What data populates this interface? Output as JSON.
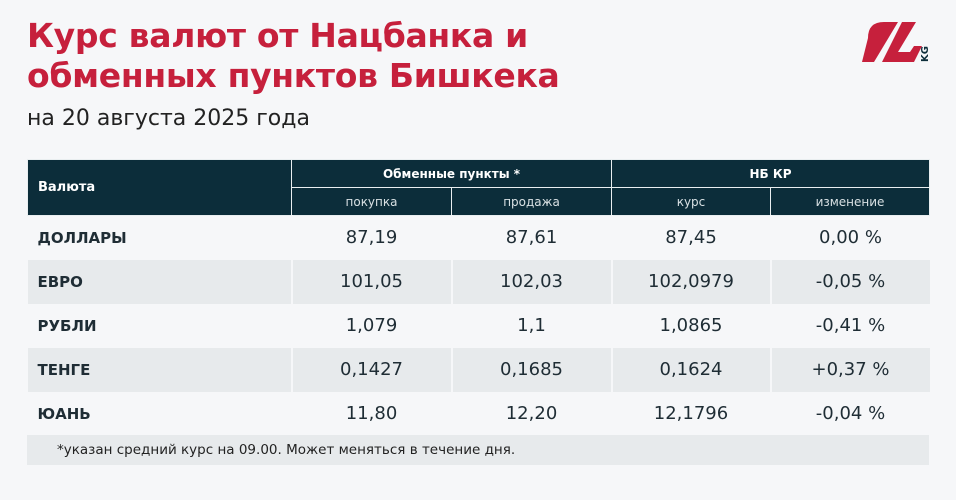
{
  "title_line1": "Курс валют от Нацбанка и",
  "title_line2": "обменных пунктов Бишкека",
  "subtitle": "на 20 августа 2025 года",
  "logo": {
    "text": "24",
    "suffix": "KG",
    "colors": {
      "red": "#c6203c",
      "blue": "#0c2d3a"
    }
  },
  "table": {
    "currency_header": "Валюта",
    "group_exchange": "Обменные пункты *",
    "group_nb": "НБ КР",
    "sub_headers": [
      "покупка",
      "продажа",
      "курс",
      "изменение"
    ],
    "rows": [
      {
        "name": "ДОЛЛАРЫ",
        "buy": "87,19",
        "sell": "87,61",
        "rate": "87,45",
        "change": "0,00 %"
      },
      {
        "name": "ЕВРО",
        "buy": "101,05",
        "sell": "102,03",
        "rate": "102,0979",
        "change": "-0,05 %"
      },
      {
        "name": "РУБЛИ",
        "buy": "1,079",
        "sell": "1,1",
        "rate": "1,0865",
        "change": "-0,41 %"
      },
      {
        "name": "ТЕНГЕ",
        "buy": "0,1427",
        "sell": "0,1685",
        "rate": "0,1624",
        "change": "+0,37 %"
      },
      {
        "name": "ЮАНЬ",
        "buy": "11,80",
        "sell": "12,20",
        "rate": "12,1796",
        "change": "-0,04 %"
      }
    ]
  },
  "footnote": "*указан средний курс на 09.00. Может меняться в течение дня."
}
